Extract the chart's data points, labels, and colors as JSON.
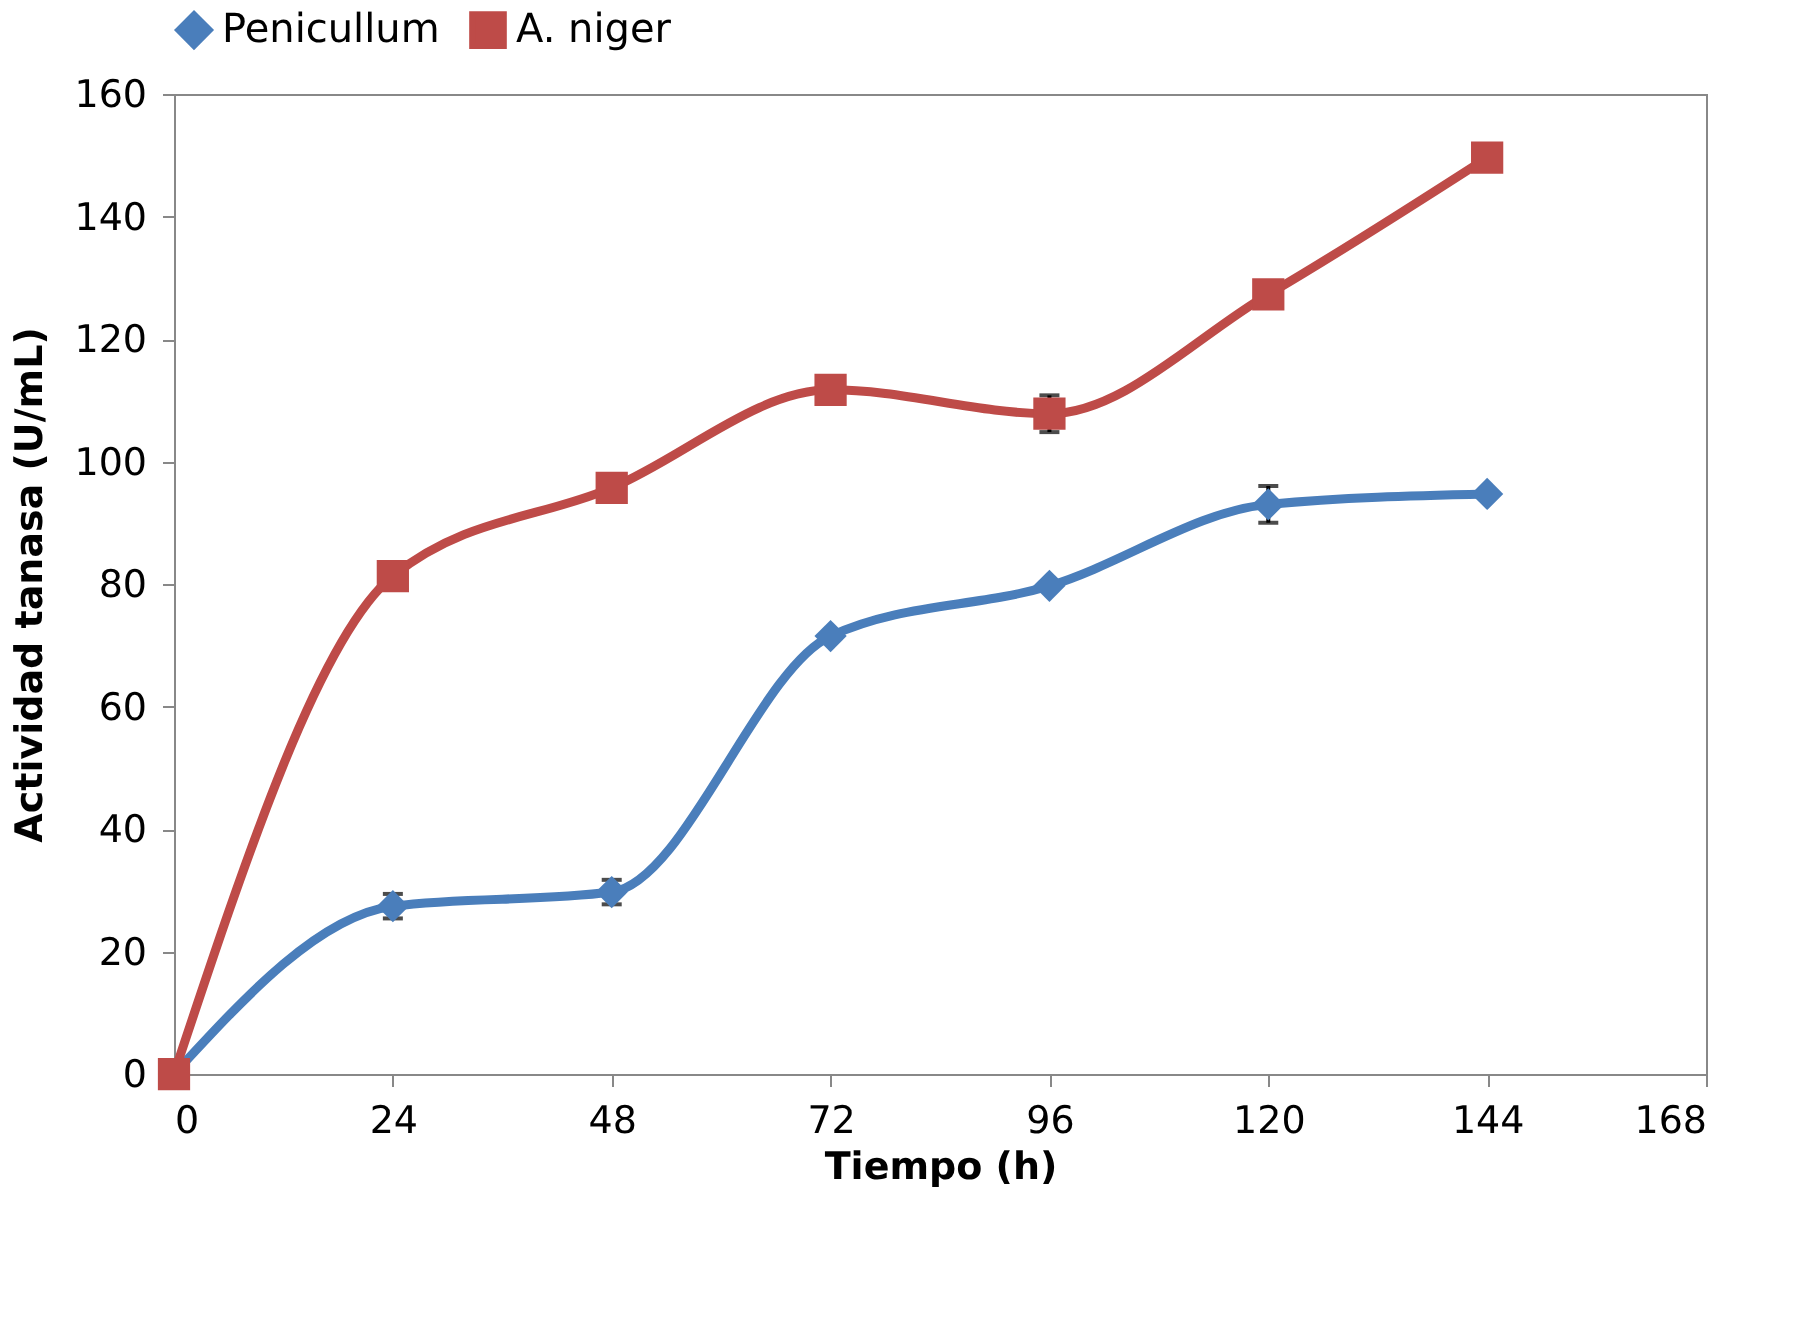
{
  "chart_data": {
    "type": "line",
    "xlabel": "Tiempo (h)",
    "ylabel": "Actividad tanasa  (U/mL)",
    "x": [
      0,
      24,
      48,
      72,
      96,
      120,
      144
    ],
    "series": [
      {
        "name": "Penicullum",
        "color": "#4a7ebb",
        "marker": "diamond",
        "values": [
          0,
          27.4,
          29.7,
          71.5,
          79.7,
          93,
          94.7
        ],
        "errors": [
          null,
          2,
          2,
          null,
          null,
          3,
          null
        ]
      },
      {
        "name": "A. niger",
        "color": "#be4b48",
        "marker": "square",
        "values": [
          0,
          81.3,
          95.7,
          111.7,
          107.8,
          127.3,
          149.6
        ],
        "errors": [
          null,
          null,
          null,
          null,
          3,
          null,
          null
        ]
      }
    ],
    "xlim": [
      0,
      168
    ],
    "xticks": [
      0,
      24,
      48,
      72,
      96,
      120,
      144,
      168
    ],
    "ylim": [
      0,
      160
    ],
    "yticks": [
      0,
      20,
      40,
      60,
      80,
      100,
      120,
      140,
      160
    ],
    "grid": false,
    "legend": "top",
    "line_style": "solid"
  }
}
